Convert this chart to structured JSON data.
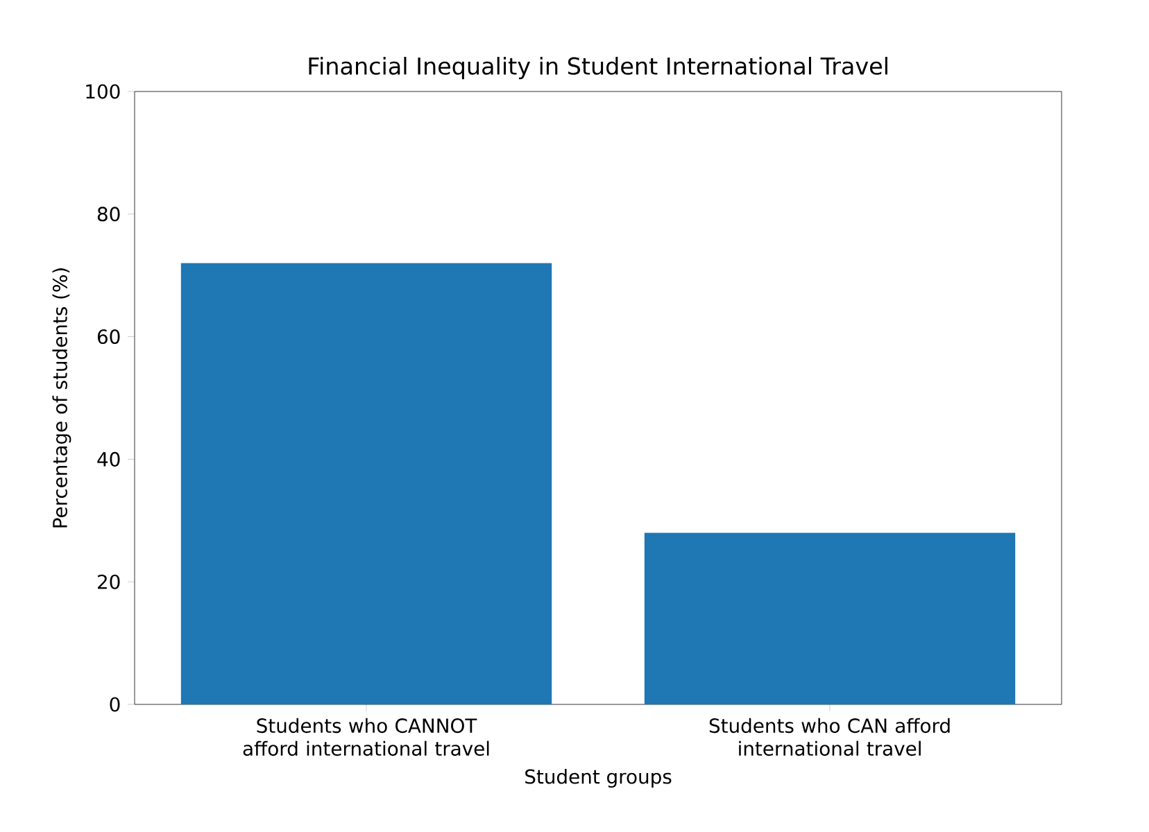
{
  "chart_data": {
    "type": "bar",
    "title": "Financial Inequality in Student International Travel",
    "xlabel": "Student groups",
    "ylabel": "Percentage of students (%)",
    "categories": [
      "Students who CANNOT afford international travel",
      "Students who CAN afford international travel"
    ],
    "values": [
      72,
      28
    ],
    "color": "#1f77b4",
    "ylim": [
      0,
      100
    ],
    "yticks": [
      0,
      20,
      40,
      60,
      80,
      100
    ]
  }
}
